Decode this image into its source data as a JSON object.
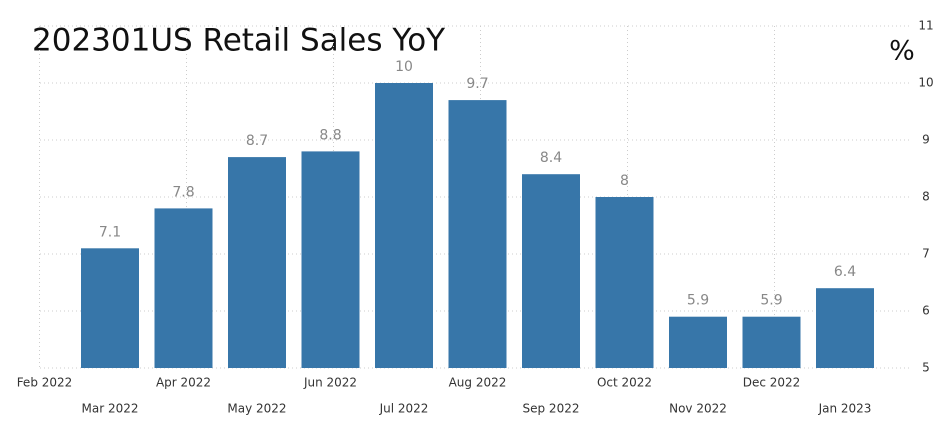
{
  "chart_data": {
    "type": "bar",
    "title": "202301US Retail Sales YoY",
    "y_unit": "%",
    "categories": [
      "Feb 2022",
      "Mar 2022",
      "Apr 2022",
      "May 2022",
      "Jun 2022",
      "Jul 2022",
      "Aug 2022",
      "Sep 2022",
      "Oct 2022",
      "Nov 2022",
      "Dec 2022",
      "Jan 2023"
    ],
    "values": [
      null,
      7.1,
      7.8,
      8.7,
      8.8,
      10,
      9.7,
      8.4,
      8,
      5.9,
      5.9,
      6.4
    ],
    "color": "#3776a9",
    "ylim": [
      5,
      11
    ],
    "yticks": [
      5,
      6,
      7,
      8,
      9,
      10,
      11
    ],
    "grid": true
  }
}
